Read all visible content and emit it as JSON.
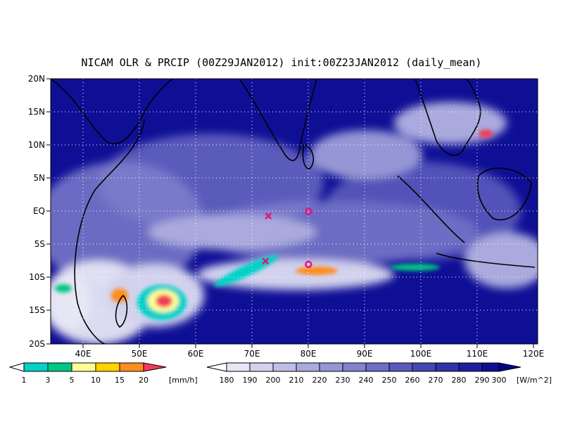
{
  "title": "NICAM OLR & PRCIP (00Z29JAN2012) init:00Z23JAN2012 (daily_mean)",
  "axes": {
    "lat_labels": [
      "20N",
      "15N",
      "10N",
      "5N",
      "EQ",
      "5S",
      "10S",
      "15S",
      "20S"
    ],
    "lon_labels": [
      "40E",
      "50E",
      "60E",
      "70E",
      "80E",
      "90E",
      "100E",
      "110E",
      "120E"
    ],
    "lat_range": [
      -20,
      20
    ],
    "lon_range": [
      35,
      120
    ]
  },
  "colorbars": {
    "precip": {
      "labels": [
        "1",
        "3",
        "5",
        "10",
        "15",
        "20"
      ],
      "unit": "[mm/h]",
      "colors": [
        "#00d2c8",
        "#00c882",
        "#ffff96",
        "#ffd200",
        "#ff8c1e",
        "#f03c5a"
      ]
    },
    "olr": {
      "labels": [
        "180",
        "190",
        "200",
        "210",
        "220",
        "230",
        "240",
        "250",
        "260",
        "270",
        "280",
        "290",
        "300"
      ],
      "unit": "[W/m^2]",
      "colors": [
        "#e6e6f5",
        "#d2d2ee",
        "#bebee6",
        "#aaaade",
        "#9696d6",
        "#8282ce",
        "#6e6ec6",
        "#5a5abe",
        "#4646b4",
        "#3232aa",
        "#1e1ea0",
        "#0f0f96",
        "#050587"
      ]
    }
  },
  "markers": [
    {
      "type": "cross",
      "lon": 73,
      "lat": -0.7,
      "color": "#e6147a"
    },
    {
      "type": "circle",
      "lon": 80,
      "lat": 0,
      "color": "#e6147a"
    },
    {
      "type": "cross",
      "lon": 72.5,
      "lat": -7.5,
      "color": "#e6147a"
    },
    {
      "type": "circle",
      "lon": 80,
      "lat": -8,
      "color": "#e6147a"
    }
  ]
}
